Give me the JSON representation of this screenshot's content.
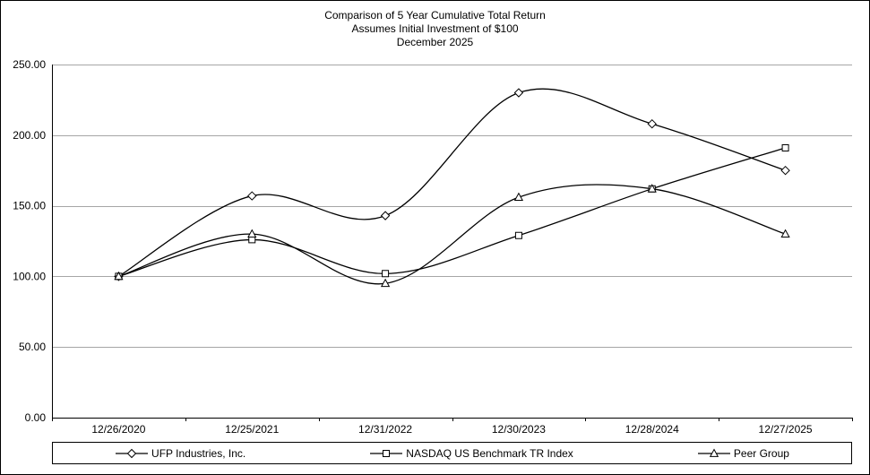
{
  "title": {
    "line1": "Comparison of 5 Year Cumulative Total Return",
    "line2": "Assumes Initial Investment of $100",
    "line3": "December 2025"
  },
  "colors": {
    "line": "#000000",
    "grid": "#a6a6a6",
    "axis": "#000000",
    "background": "#ffffff",
    "marker_fill": "#ffffff"
  },
  "chart_data": {
    "type": "line",
    "x": [
      "12/26/2020",
      "12/25/2021",
      "12/31/2022",
      "12/30/2023",
      "12/28/2024",
      "12/27/2025"
    ],
    "series": [
      {
        "name": "UFP Industries, Inc.",
        "marker": "diamond",
        "values": [
          100,
          157,
          143,
          230,
          208,
          175
        ]
      },
      {
        "name": "NASDAQ US Benchmark TR Index",
        "marker": "square",
        "values": [
          100,
          126,
          102,
          129,
          162,
          191
        ]
      },
      {
        "name": "Peer Group",
        "marker": "triangle",
        "values": [
          100,
          130,
          95,
          156,
          162,
          130
        ]
      }
    ],
    "ylim": [
      0,
      250
    ],
    "ytick_step": 50,
    "ytick_labels": [
      "0.00",
      "50.00",
      "100.00",
      "150.00",
      "200.00",
      "250.00"
    ],
    "grid": true,
    "line_style": "smooth",
    "legend_position": "bottom"
  }
}
